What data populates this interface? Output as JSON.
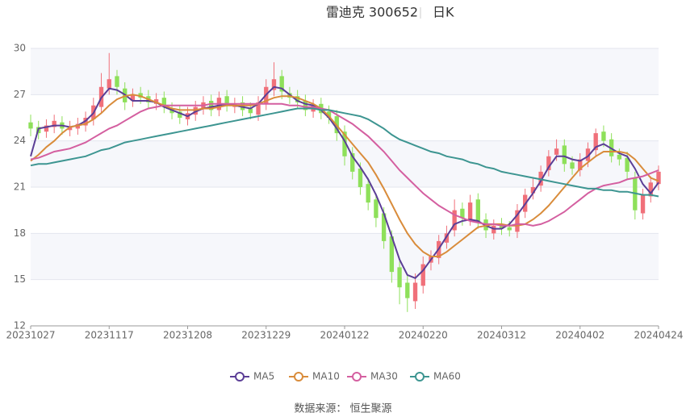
{
  "chart_data": {
    "type": "candlestick",
    "title": "雷迪克 300652",
    "subtitle": "日K",
    "source": "数据来源：  恒生聚源",
    "categories": [
      "20231027",
      null,
      null,
      null,
      null,
      null,
      null,
      null,
      null,
      null,
      "20231117",
      null,
      null,
      null,
      null,
      null,
      null,
      null,
      null,
      null,
      "20231208",
      null,
      null,
      null,
      null,
      null,
      null,
      null,
      null,
      null,
      "20231229",
      null,
      null,
      null,
      null,
      null,
      null,
      null,
      null,
      null,
      "20240122",
      null,
      null,
      null,
      null,
      null,
      null,
      null,
      null,
      null,
      "20240220",
      null,
      null,
      null,
      null,
      null,
      null,
      null,
      null,
      null,
      "20240312",
      null,
      null,
      null,
      null,
      null,
      null,
      null,
      null,
      null,
      "20240402",
      null,
      null,
      null,
      null,
      null,
      null,
      null,
      null,
      null,
      "20240424"
    ],
    "ylim": [
      12,
      30
    ],
    "yticks": [
      12,
      15,
      18,
      21,
      24,
      27,
      30
    ],
    "grid": true,
    "up_color": "#f0707a",
    "down_color": "#8ee05a",
    "open": [
      25.2,
      24.9,
      24.6,
      24.9,
      25.2,
      24.7,
      24.8,
      25.0,
      25.4,
      26.2,
      27.4,
      28.2,
      27.4,
      26.6,
      27.1,
      26.9,
      26.4,
      26.8,
      26.1,
      25.9,
      25.4,
      25.7,
      26.1,
      26.6,
      26.0,
      26.9,
      26.2,
      26.5,
      26.1,
      25.7,
      26.4,
      27.3,
      28.2,
      27.1,
      26.9,
      26.6,
      25.9,
      26.4,
      25.9,
      25.6,
      24.6,
      23.2,
      22.2,
      21.2,
      20.2,
      19.3,
      17.8,
      15.8,
      14.8,
      13.6,
      14.6,
      16.1,
      16.4,
      17.4,
      18.2,
      19.6,
      18.9,
      20.2,
      18.9,
      18.0,
      18.6,
      18.4,
      18.1,
      19.4,
      20.6,
      21.1,
      22.1,
      23.1,
      23.7,
      22.6,
      22.1,
      22.7,
      23.4,
      24.6,
      24.1,
      23.1,
      22.9,
      21.6,
      19.3,
      20.4,
      21.2
    ],
    "close": [
      24.8,
      24.5,
      25.0,
      25.3,
      24.8,
      24.9,
      25.1,
      25.5,
      26.3,
      27.5,
      28.0,
      27.5,
      26.5,
      27.0,
      26.8,
      26.5,
      26.7,
      26.2,
      25.8,
      25.5,
      25.8,
      26.2,
      26.5,
      26.0,
      26.8,
      26.3,
      26.4,
      26.0,
      25.8,
      26.5,
      27.5,
      28.0,
      27.2,
      26.8,
      26.5,
      26.0,
      26.3,
      25.8,
      25.5,
      24.5,
      23.0,
      22.0,
      21.0,
      20.0,
      19.0,
      17.5,
      15.5,
      14.5,
      13.8,
      14.8,
      16.0,
      16.5,
      17.5,
      18.0,
      19.5,
      19.0,
      20.0,
      18.8,
      18.2,
      18.5,
      18.3,
      18.2,
      19.5,
      20.5,
      21.0,
      22.0,
      23.0,
      23.5,
      22.5,
      22.2,
      22.8,
      23.5,
      24.5,
      24.0,
      23.0,
      22.8,
      22.0,
      19.5,
      20.5,
      21.3,
      22.0
    ],
    "low": [
      24.3,
      24.1,
      24.2,
      24.5,
      24.4,
      24.3,
      24.4,
      24.6,
      25.0,
      25.8,
      27.0,
      27.0,
      26.0,
      26.2,
      26.4,
      26.1,
      26.0,
      25.8,
      25.4,
      25.1,
      25.0,
      25.3,
      25.7,
      25.6,
      25.6,
      25.9,
      25.8,
      25.6,
      25.4,
      25.3,
      26.0,
      26.9,
      26.7,
      26.4,
      26.1,
      25.6,
      25.5,
      25.4,
      25.1,
      24.0,
      22.4,
      21.5,
      20.5,
      19.5,
      18.4,
      17.0,
      14.8,
      13.4,
      12.9,
      13.1,
      14.1,
      15.6,
      16.0,
      17.0,
      17.8,
      18.5,
      18.5,
      18.3,
      17.7,
      17.6,
      17.9,
      17.8,
      17.7,
      19.0,
      20.2,
      20.7,
      21.7,
      22.7,
      22.0,
      21.8,
      21.7,
      22.3,
      23.0,
      23.6,
      22.6,
      22.4,
      21.5,
      18.9,
      18.9,
      20.0,
      20.8
    ],
    "high": [
      25.7,
      25.3,
      25.4,
      25.7,
      25.6,
      25.3,
      25.5,
      25.9,
      26.8,
      28.4,
      29.7,
      28.6,
      27.8,
      27.4,
      27.5,
      27.3,
      27.1,
      27.2,
      26.5,
      26.3,
      26.2,
      26.6,
      26.9,
      27.0,
      27.2,
      27.3,
      26.8,
      26.9,
      26.5,
      26.9,
      28.0,
      29.1,
      28.6,
      27.5,
      27.3,
      27.0,
      26.7,
      26.8,
      26.3,
      26.0,
      25.0,
      23.6,
      22.6,
      21.6,
      20.6,
      19.7,
      18.2,
      16.2,
      15.3,
      15.4,
      16.5,
      16.9,
      17.9,
      18.5,
      20.2,
      20.0,
      20.5,
      20.6,
      19.3,
      18.9,
      19.0,
      18.8,
      19.9,
      20.9,
      21.6,
      22.4,
      23.4,
      24.1,
      24.1,
      23.0,
      23.2,
      23.9,
      24.8,
      25.0,
      24.5,
      23.5,
      23.3,
      22.0,
      20.9,
      21.7,
      22.4
    ],
    "series": [
      {
        "name": "MA5",
        "color": "#5b3e96",
        "values": [
          23.0,
          24.8,
          24.9,
          25.0,
          25.0,
          24.9,
          25.0,
          25.3,
          25.8,
          26.8,
          27.4,
          27.3,
          27.0,
          26.6,
          26.6,
          26.6,
          26.5,
          26.2,
          26.0,
          25.8,
          25.6,
          25.9,
          26.1,
          26.2,
          26.3,
          26.4,
          26.3,
          26.2,
          26.1,
          26.4,
          27.0,
          27.5,
          27.4,
          27.0,
          26.6,
          26.4,
          26.3,
          26.0,
          25.5,
          24.8,
          24.0,
          23.0,
          22.3,
          21.5,
          20.5,
          19.3,
          17.8,
          16.3,
          15.3,
          15.1,
          15.6,
          16.3,
          17.0,
          17.8,
          18.6,
          18.8,
          18.9,
          18.8,
          18.5,
          18.3,
          18.3,
          18.6,
          19.2,
          19.9,
          20.6,
          21.4,
          22.3,
          23.0,
          23.0,
          22.8,
          22.7,
          23.0,
          23.6,
          23.8,
          23.5,
          23.2,
          23.0,
          22.2,
          21.2,
          20.6,
          21.3
        ]
      },
      {
        "name": "MA10",
        "color": "#d98c3b",
        "values": [
          22.7,
          23.1,
          23.6,
          24.0,
          24.5,
          24.9,
          25.0,
          25.1,
          25.4,
          25.8,
          26.3,
          26.7,
          26.9,
          27.0,
          26.9,
          26.7,
          26.5,
          26.3,
          26.1,
          26.0,
          26.0,
          26.0,
          26.1,
          26.1,
          26.2,
          26.3,
          26.3,
          26.3,
          26.3,
          26.4,
          26.6,
          26.8,
          26.9,
          26.9,
          26.8,
          26.6,
          26.4,
          26.1,
          25.6,
          25.0,
          24.4,
          23.8,
          23.2,
          22.6,
          21.8,
          20.9,
          19.9,
          18.9,
          18.0,
          17.3,
          16.8,
          16.5,
          16.5,
          16.8,
          17.2,
          17.6,
          18.0,
          18.4,
          18.5,
          18.6,
          18.6,
          18.5,
          18.5,
          18.6,
          18.9,
          19.3,
          19.8,
          20.4,
          21.0,
          21.6,
          22.2,
          22.6,
          23.0,
          23.3,
          23.3,
          23.3,
          23.2,
          22.8,
          22.2,
          21.6,
          21.4
        ]
      },
      {
        "name": "MA30",
        "color": "#d45fa0",
        "values": [
          22.8,
          22.9,
          23.1,
          23.3,
          23.4,
          23.5,
          23.7,
          23.9,
          24.2,
          24.5,
          24.8,
          25.0,
          25.3,
          25.6,
          25.9,
          26.1,
          26.2,
          26.3,
          26.3,
          26.3,
          26.3,
          26.3,
          26.3,
          26.4,
          26.4,
          26.4,
          26.4,
          26.4,
          26.4,
          26.4,
          26.4,
          26.4,
          26.4,
          26.3,
          26.3,
          26.2,
          26.2,
          26.1,
          26.0,
          25.7,
          25.4,
          25.1,
          24.7,
          24.3,
          23.8,
          23.3,
          22.7,
          22.1,
          21.6,
          21.1,
          20.6,
          20.2,
          19.8,
          19.5,
          19.2,
          19.0,
          18.8,
          18.7,
          18.6,
          18.6,
          18.5,
          18.5,
          18.6,
          18.6,
          18.5,
          18.6,
          18.8,
          19.1,
          19.4,
          19.8,
          20.2,
          20.6,
          20.9,
          21.1,
          21.2,
          21.3,
          21.5,
          21.6,
          21.7,
          21.9,
          22.1
        ]
      },
      {
        "name": "MA60",
        "color": "#3d9591",
        "values": [
          22.4,
          22.5,
          22.5,
          22.6,
          22.7,
          22.8,
          22.9,
          23.0,
          23.2,
          23.4,
          23.5,
          23.7,
          23.9,
          24.0,
          24.1,
          24.2,
          24.3,
          24.4,
          24.5,
          24.6,
          24.7,
          24.8,
          24.9,
          25.0,
          25.1,
          25.2,
          25.3,
          25.4,
          25.5,
          25.6,
          25.7,
          25.8,
          25.9,
          26.0,
          26.1,
          26.1,
          26.1,
          26.0,
          26.0,
          25.9,
          25.8,
          25.7,
          25.6,
          25.4,
          25.1,
          24.8,
          24.4,
          24.1,
          23.9,
          23.7,
          23.5,
          23.3,
          23.2,
          23.0,
          22.9,
          22.8,
          22.6,
          22.5,
          22.3,
          22.2,
          22.0,
          21.9,
          21.8,
          21.7,
          21.6,
          21.5,
          21.4,
          21.3,
          21.2,
          21.1,
          21.0,
          20.9,
          20.9,
          20.8,
          20.8,
          20.7,
          20.7,
          20.6,
          20.5,
          20.5,
          20.4
        ]
      }
    ]
  }
}
